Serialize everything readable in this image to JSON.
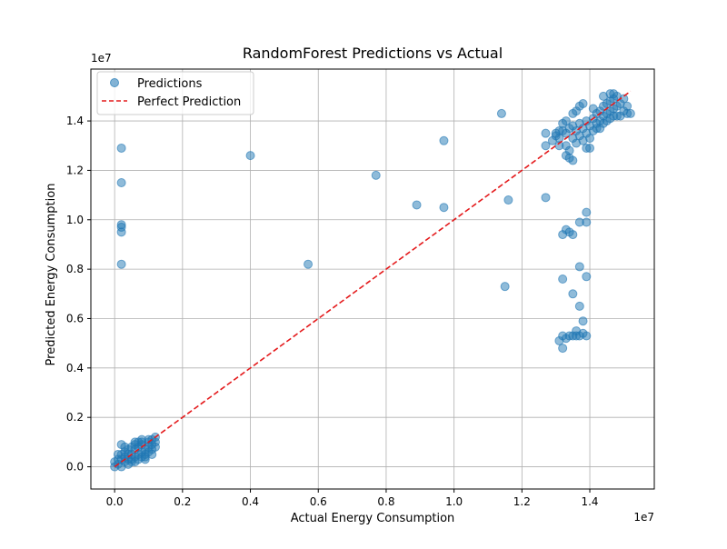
{
  "chart_data": {
    "type": "scatter",
    "title": "RandomForest Predictions vs Actual",
    "xlabel": "Actual Energy Consumption",
    "ylabel": "Predicted Energy Consumption",
    "x_scale_label": "1e7",
    "y_scale_label": "1e7",
    "xlim": [
      -0.07,
      1.59
    ],
    "ylim": [
      -0.09,
      1.61
    ],
    "xticks": [
      0.0,
      0.2,
      0.4,
      0.6,
      0.8,
      1.0,
      1.2,
      1.4
    ],
    "yticks": [
      0.0,
      0.2,
      0.4,
      0.6,
      0.8,
      1.0,
      1.2,
      1.4
    ],
    "xtick_labels": [
      "0.0",
      "0.2",
      "0.4",
      "0.6",
      "0.8",
      "1.0",
      "1.2",
      "1.4"
    ],
    "ytick_labels": [
      "0.0",
      "0.2",
      "0.4",
      "0.6",
      "0.8",
      "1.0",
      "1.2",
      "1.4"
    ],
    "grid": true,
    "legend_position": "top-left",
    "legend": [
      "Predictions",
      "Perfect Prediction"
    ],
    "series": [
      {
        "name": "Predictions",
        "kind": "scatter",
        "color": "#1f77b4",
        "points": [
          [
            0.0,
            0.0
          ],
          [
            0.01,
            0.01
          ],
          [
            0.0,
            0.02
          ],
          [
            0.02,
            0.0
          ],
          [
            0.01,
            0.03
          ],
          [
            0.03,
            0.02
          ],
          [
            0.02,
            0.05
          ],
          [
            0.04,
            0.03
          ],
          [
            0.03,
            0.06
          ],
          [
            0.05,
            0.02
          ],
          [
            0.05,
            0.05
          ],
          [
            0.06,
            0.04
          ],
          [
            0.06,
            0.07
          ],
          [
            0.07,
            0.05
          ],
          [
            0.07,
            0.08
          ],
          [
            0.08,
            0.06
          ],
          [
            0.08,
            0.09
          ],
          [
            0.09,
            0.07
          ],
          [
            0.09,
            0.05
          ],
          [
            0.1,
            0.08
          ],
          [
            0.1,
            0.1
          ],
          [
            0.11,
            0.09
          ],
          [
            0.11,
            0.07
          ],
          [
            0.12,
            0.1
          ],
          [
            0.12,
            0.08
          ],
          [
            0.02,
            0.09
          ],
          [
            0.03,
            0.08
          ],
          [
            0.03,
            0.04
          ],
          [
            0.04,
            0.07
          ],
          [
            0.04,
            0.05
          ],
          [
            0.05,
            0.08
          ],
          [
            0.05,
            0.03
          ],
          [
            0.06,
            0.02
          ],
          [
            0.06,
            0.09
          ],
          [
            0.07,
            0.03
          ],
          [
            0.07,
            0.1
          ],
          [
            0.08,
            0.04
          ],
          [
            0.08,
            0.1
          ],
          [
            0.09,
            0.04
          ],
          [
            0.1,
            0.11
          ],
          [
            0.1,
            0.06
          ],
          [
            0.11,
            0.11
          ],
          [
            0.11,
            0.05
          ],
          [
            0.12,
            0.12
          ],
          [
            0.09,
            0.03
          ],
          [
            0.02,
            0.03
          ],
          [
            0.04,
            0.01
          ],
          [
            0.01,
            0.05
          ],
          [
            0.06,
            0.1
          ],
          [
            0.08,
            0.11
          ],
          [
            0.02,
            1.29
          ],
          [
            0.02,
            1.15
          ],
          [
            0.02,
            0.98
          ],
          [
            0.02,
            0.97
          ],
          [
            0.02,
            0.95
          ],
          [
            0.02,
            0.82
          ],
          [
            0.4,
            1.26
          ],
          [
            0.57,
            0.82
          ],
          [
            0.77,
            1.18
          ],
          [
            0.89,
            1.06
          ],
          [
            0.97,
            1.05
          ],
          [
            0.97,
            1.32
          ],
          [
            1.14,
            1.43
          ],
          [
            1.16,
            1.08
          ],
          [
            1.15,
            0.73
          ],
          [
            1.27,
            1.09
          ],
          [
            1.29,
            1.32
          ],
          [
            1.3,
            1.34
          ],
          [
            1.31,
            1.33
          ],
          [
            1.32,
            1.36
          ],
          [
            1.33,
            1.35
          ],
          [
            1.33,
            1.3
          ],
          [
            1.34,
            1.37
          ],
          [
            1.34,
            1.28
          ],
          [
            1.35,
            1.33
          ],
          [
            1.35,
            1.38
          ],
          [
            1.36,
            1.31
          ],
          [
            1.36,
            1.36
          ],
          [
            1.37,
            1.34
          ],
          [
            1.37,
            1.39
          ],
          [
            1.38,
            1.32
          ],
          [
            1.38,
            1.37
          ],
          [
            1.39,
            1.35
          ],
          [
            1.39,
            1.4
          ],
          [
            1.4,
            1.33
          ],
          [
            1.4,
            1.38
          ],
          [
            1.41,
            1.36
          ],
          [
            1.41,
            1.41
          ],
          [
            1.42,
            1.39
          ],
          [
            1.42,
            1.43
          ],
          [
            1.43,
            1.4
          ],
          [
            1.43,
            1.44
          ],
          [
            1.44,
            1.42
          ],
          [
            1.44,
            1.46
          ],
          [
            1.45,
            1.43
          ],
          [
            1.45,
            1.47
          ],
          [
            1.46,
            1.44
          ],
          [
            1.46,
            1.48
          ],
          [
            1.47,
            1.45
          ],
          [
            1.47,
            1.49
          ],
          [
            1.48,
            1.46
          ],
          [
            1.48,
            1.5
          ],
          [
            1.49,
            1.47
          ],
          [
            1.5,
            1.44
          ],
          [
            1.51,
            1.43
          ],
          [
            1.49,
            1.42
          ],
          [
            1.27,
            1.3
          ],
          [
            1.27,
            1.35
          ],
          [
            1.31,
            1.3
          ],
          [
            1.32,
            1.39
          ],
          [
            1.33,
            1.26
          ],
          [
            1.34,
            1.25
          ],
          [
            1.35,
            1.24
          ],
          [
            1.35,
            1.43
          ],
          [
            1.37,
            1.46
          ],
          [
            1.38,
            1.47
          ],
          [
            1.39,
            1.29
          ],
          [
            1.4,
            1.29
          ],
          [
            1.41,
            1.45
          ],
          [
            1.42,
            1.37
          ],
          [
            1.43,
            1.37
          ],
          [
            1.44,
            1.39
          ],
          [
            1.45,
            1.4
          ],
          [
            1.46,
            1.41
          ],
          [
            1.47,
            1.42
          ],
          [
            1.48,
            1.42
          ],
          [
            1.5,
            1.49
          ],
          [
            1.51,
            1.46
          ],
          [
            1.52,
            1.43
          ],
          [
            1.46,
            1.51
          ],
          [
            1.47,
            1.51
          ],
          [
            1.44,
            1.5
          ],
          [
            1.36,
            1.44
          ],
          [
            1.33,
            1.4
          ],
          [
            1.31,
            1.36
          ],
          [
            1.3,
            1.35
          ],
          [
            1.39,
            0.99
          ],
          [
            1.37,
            0.99
          ],
          [
            1.33,
            0.96
          ],
          [
            1.34,
            0.95
          ],
          [
            1.32,
            0.94
          ],
          [
            1.35,
            0.94
          ],
          [
            1.39,
            1.03
          ],
          [
            1.37,
            0.81
          ],
          [
            1.39,
            0.77
          ],
          [
            1.32,
            0.76
          ],
          [
            1.35,
            0.7
          ],
          [
            1.37,
            0.65
          ],
          [
            1.38,
            0.59
          ],
          [
            1.36,
            0.55
          ],
          [
            1.31,
            0.51
          ],
          [
            1.32,
            0.48
          ],
          [
            1.32,
            0.53
          ],
          [
            1.35,
            0.53
          ],
          [
            1.36,
            0.53
          ],
          [
            1.37,
            0.53
          ],
          [
            1.38,
            0.54
          ],
          [
            1.39,
            0.53
          ],
          [
            1.33,
            0.52
          ],
          [
            1.34,
            0.53
          ]
        ]
      },
      {
        "name": "Perfect Prediction",
        "kind": "line",
        "color": "#e41a1c",
        "style": "dashed",
        "points": [
          [
            0.0,
            0.0
          ],
          [
            1.52,
            1.52
          ]
        ]
      }
    ]
  }
}
